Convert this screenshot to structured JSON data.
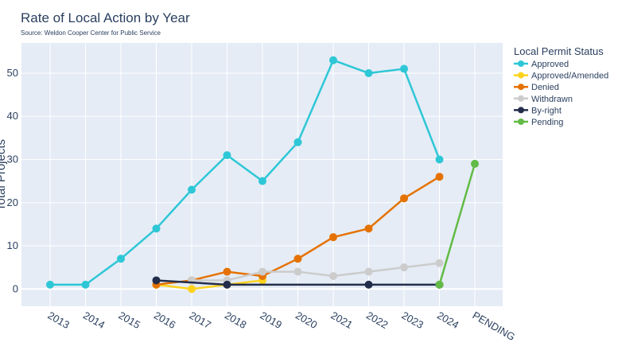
{
  "chart_data": {
    "type": "line",
    "title": "Rate of Local Action by Year",
    "subtitle": "Source: Weldon Cooper Center for Public Service",
    "xlabel": "",
    "ylabel": "Total Projects",
    "categories": [
      "2013",
      "2014",
      "2015",
      "2016",
      "2017",
      "2018",
      "2019",
      "2020",
      "2021",
      "2022",
      "2023",
      "2024",
      "PENDING"
    ],
    "ylim": [
      -4,
      57
    ],
    "yticks": [
      0,
      10,
      20,
      30,
      40,
      50
    ],
    "grid": true,
    "legend_title": "Local Permit Status",
    "legend_position": "right",
    "series": [
      {
        "name": "Approved",
        "color": "#2ec7d6",
        "x": [
          "2013",
          "2014",
          "2015",
          "2016",
          "2017",
          "2018",
          "2019",
          "2020",
          "2021",
          "2022",
          "2023",
          "2024"
        ],
        "values": [
          1,
          1,
          7,
          14,
          23,
          31,
          25,
          34,
          53,
          50,
          51,
          30
        ]
      },
      {
        "name": "Approved/Amended",
        "color": "#fcd21d",
        "x": [
          "2016",
          "2017",
          "2018",
          "2019"
        ],
        "values": [
          1,
          0,
          1,
          2
        ]
      },
      {
        "name": "Denied",
        "color": "#e57200",
        "x": [
          "2016",
          "2017",
          "2018",
          "2019",
          "2020",
          "2021",
          "2022",
          "2023",
          "2024"
        ],
        "values": [
          1,
          2,
          4,
          3,
          7,
          12,
          14,
          21,
          26
        ]
      },
      {
        "name": "Withdrawn",
        "color": "#cccccc",
        "x": [
          "2017",
          "2018",
          "2019",
          "2020",
          "2021",
          "2022",
          "2023",
          "2024"
        ],
        "values": [
          2,
          2,
          4,
          4,
          3,
          4,
          5,
          6
        ]
      },
      {
        "name": "By-right",
        "color": "#232d4b",
        "x": [
          "2016",
          "2018",
          "2022",
          "2024"
        ],
        "values": [
          2,
          1,
          1,
          1
        ]
      },
      {
        "name": "Pending",
        "color": "#62bb46",
        "x": [
          "2024",
          "PENDING"
        ],
        "values": [
          1,
          29
        ]
      }
    ]
  }
}
